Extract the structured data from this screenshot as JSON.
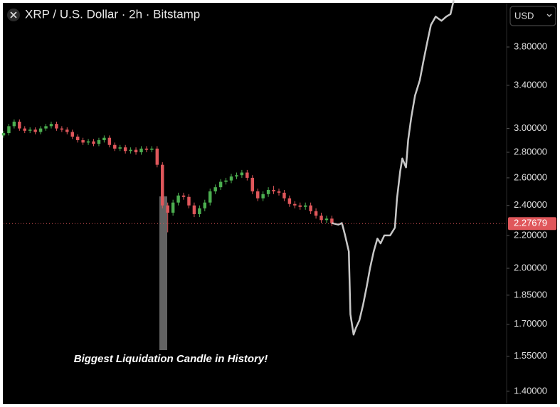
{
  "chart_data": {
    "type": "candlestick",
    "title": "XRP / U.S. Dollar · 2h · Bitstamp",
    "currency": "USD",
    "annotation": "Biggest Liquidation Candle in History!",
    "log_scale": true,
    "up_color": "#4caf50",
    "down_color": "#e0575b",
    "open": [
      2.94,
      2.96,
      3.02,
      3.06,
      3.0,
      2.98,
      2.99,
      2.97,
      3.0,
      3.02,
      3.04,
      3.0,
      2.99,
      2.97,
      2.93,
      2.9,
      2.88,
      2.89,
      2.87,
      2.9,
      2.92,
      2.86,
      2.83,
      2.84,
      2.81,
      2.82,
      2.8,
      2.83,
      2.82,
      2.83,
      2.7,
      2.4,
      2.35,
      2.42,
      2.47,
      2.46,
      2.4,
      2.34,
      2.38,
      2.42,
      2.5,
      2.53,
      2.57,
      2.58,
      2.61,
      2.62,
      2.64,
      2.6,
      2.5,
      2.45,
      2.48,
      2.51,
      2.5,
      2.49,
      2.45,
      2.41,
      2.4,
      2.39,
      2.4,
      2.36,
      2.33,
      2.3,
      2.31
    ],
    "high": [
      2.98,
      3.04,
      3.08,
      3.08,
      3.02,
      3.01,
      3.01,
      3.02,
      3.04,
      3.06,
      3.06,
      3.02,
      3.01,
      2.99,
      2.95,
      2.92,
      2.91,
      2.91,
      2.92,
      2.94,
      2.94,
      2.88,
      2.86,
      2.86,
      2.84,
      2.84,
      2.85,
      2.85,
      2.85,
      2.85,
      2.72,
      2.42,
      2.44,
      2.49,
      2.49,
      2.48,
      2.42,
      2.4,
      2.44,
      2.52,
      2.55,
      2.59,
      2.6,
      2.63,
      2.64,
      2.66,
      2.66,
      2.62,
      2.52,
      2.5,
      2.53,
      2.54,
      2.52,
      2.51,
      2.47,
      2.43,
      2.42,
      2.42,
      2.42,
      2.38,
      2.35,
      2.33,
      2.33
    ],
    "low": [
      2.92,
      2.94,
      3.0,
      2.98,
      2.96,
      2.96,
      2.95,
      2.95,
      2.98,
      3.0,
      2.98,
      2.97,
      2.95,
      2.91,
      2.88,
      2.86,
      2.86,
      2.85,
      2.85,
      2.88,
      2.84,
      2.81,
      2.81,
      2.79,
      2.79,
      2.78,
      2.78,
      2.8,
      2.8,
      2.68,
      2.38,
      2.22,
      2.33,
      2.4,
      2.44,
      2.38,
      2.32,
      2.32,
      2.36,
      2.4,
      2.48,
      2.51,
      2.55,
      2.56,
      2.59,
      2.6,
      2.58,
      2.48,
      2.43,
      2.43,
      2.46,
      2.48,
      2.47,
      2.43,
      2.39,
      2.38,
      2.37,
      2.37,
      2.34,
      2.31,
      2.28,
      2.28,
      2.26
    ],
    "close": [
      2.96,
      3.02,
      3.06,
      3.0,
      2.98,
      2.99,
      2.97,
      3.0,
      3.02,
      3.04,
      3.0,
      2.99,
      2.97,
      2.93,
      2.9,
      2.88,
      2.89,
      2.87,
      2.9,
      2.92,
      2.86,
      2.83,
      2.84,
      2.81,
      2.82,
      2.8,
      2.83,
      2.82,
      2.83,
      2.7,
      2.4,
      2.35,
      2.42,
      2.47,
      2.46,
      2.4,
      2.34,
      2.38,
      2.42,
      2.5,
      2.53,
      2.57,
      2.58,
      2.61,
      2.62,
      2.64,
      2.6,
      2.5,
      2.45,
      2.48,
      2.51,
      2.5,
      2.49,
      2.45,
      2.41,
      2.4,
      2.39,
      2.4,
      2.36,
      2.33,
      2.3,
      2.31,
      2.28
    ],
    "projection": {
      "color": "#c8c8c8",
      "x": [
        62,
        63.2,
        63.9,
        64.5,
        65.2,
        65.5,
        66.1,
        66.5,
        67.2,
        67.9,
        68.6,
        69.2,
        69.9,
        70.6,
        71.2,
        71.9,
        73,
        73.9,
        74.3,
        74.9,
        75.3,
        76,
        76.4,
        77,
        77.7,
        78.6,
        79.3,
        80,
        80.7,
        81.6,
        82.7,
        83.6,
        84.4,
        85
      ],
      "values": [
        2.28,
        2.27,
        2.28,
        2.2,
        2.1,
        1.75,
        1.65,
        1.68,
        1.72,
        1.8,
        1.9,
        2.0,
        2.1,
        2.18,
        2.15,
        2.2,
        2.2,
        2.25,
        2.45,
        2.65,
        2.75,
        2.68,
        2.9,
        3.1,
        3.3,
        3.45,
        3.65,
        3.85,
        4.05,
        4.15,
        4.1,
        4.15,
        4.18,
        4.35
      ]
    },
    "last_price": 2.27679,
    "xlim": [
      0,
      95
    ],
    "ylim": [
      1.357,
      4.31
    ],
    "yticks": [
      {
        "value": 3.8,
        "label": "3.80000"
      },
      {
        "value": 3.4,
        "label": "3.40000"
      },
      {
        "value": 3.0,
        "label": "3.00000"
      },
      {
        "value": 2.8,
        "label": "2.80000"
      },
      {
        "value": 2.6,
        "label": "2.60000"
      },
      {
        "value": 2.4,
        "label": "2.40000"
      },
      {
        "value": 2.2,
        "label": "2.20000"
      },
      {
        "value": 2.0,
        "label": "2.00000"
      },
      {
        "value": 1.85,
        "label": "1.85000"
      },
      {
        "value": 1.7,
        "label": "1.70000"
      },
      {
        "value": 1.55,
        "label": "1.55000"
      },
      {
        "value": 1.4,
        "label": "1.40000"
      }
    ]
  }
}
